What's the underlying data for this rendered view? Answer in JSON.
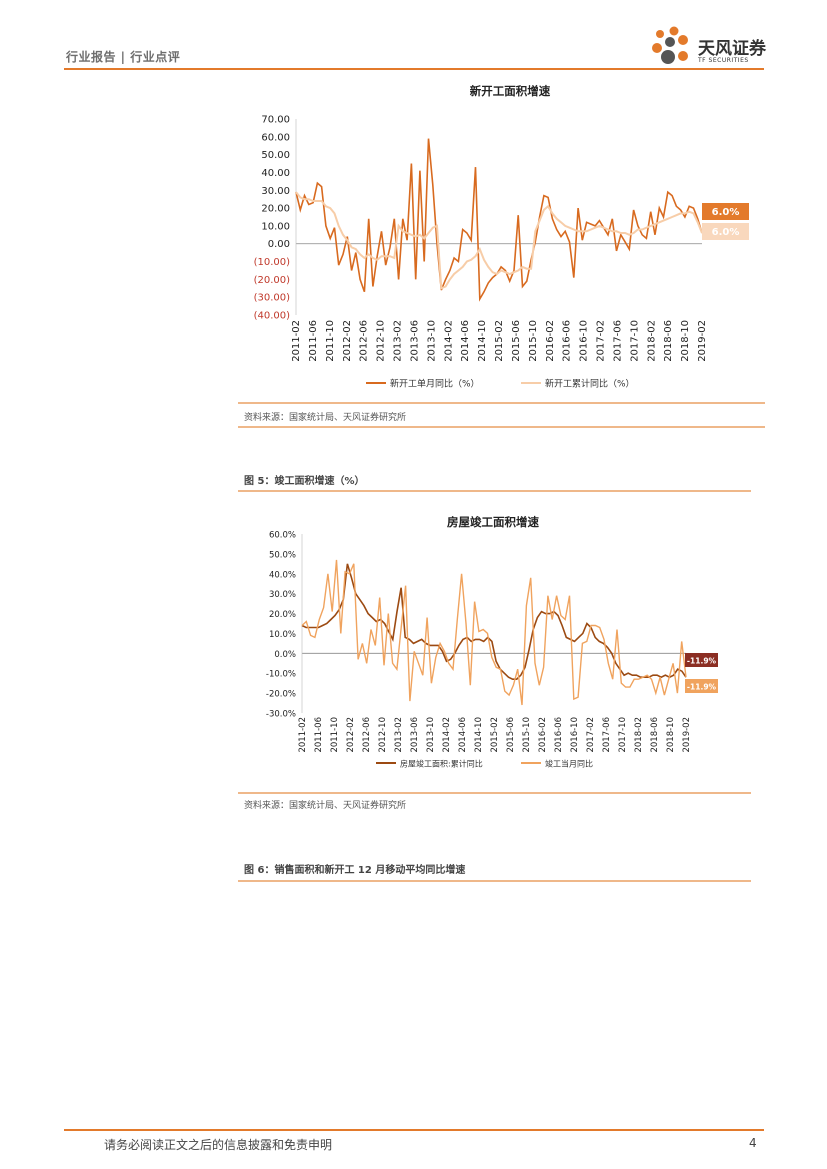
{
  "header": {
    "label": "行业报告 | 行业点评",
    "logo_cn": "天风证券",
    "logo_en": "TF SECURITIES"
  },
  "colors": {
    "accent": "#e37a2b",
    "series_dark_orange": "#d86a1f",
    "series_light_peach": "#f7cda8",
    "series_brown": "#9c4a12",
    "series_orange2": "#f0a35e",
    "label_box_brown": "#8b2e23"
  },
  "chart_data": [
    {
      "type": "line",
      "title": "新开工面积增速",
      "ylim": [
        -40,
        70
      ],
      "yticks": [
        "70.00",
        "60.00",
        "50.00",
        "40.00",
        "30.00",
        "20.00",
        "10.00",
        "0.00",
        "(10.00)",
        "(20.00)",
        "(30.00)",
        "(40.00)"
      ],
      "xticks": [
        "2011-02",
        "2011-06",
        "2011-10",
        "2012-02",
        "2012-06",
        "2012-10",
        "2013-02",
        "2013-06",
        "2013-10",
        "2014-02",
        "2014-06",
        "2014-10",
        "2015-02",
        "2015-06",
        "2015-10",
        "2016-02",
        "2016-06",
        "2016-10",
        "2017-02",
        "2017-06",
        "2017-10",
        "2018-02",
        "2018-06",
        "2018-10",
        "2019-02"
      ],
      "series": [
        {
          "name": "新开工单月同比（%）",
          "end_label": "6.0%",
          "values": [
            29,
            19,
            27,
            22,
            23,
            34,
            32,
            10,
            3,
            9,
            -12,
            -6,
            4,
            -15,
            -5,
            -20,
            -27,
            14,
            -24,
            -7,
            7,
            -12,
            -2,
            14,
            -20,
            14,
            2,
            45,
            -20,
            41,
            -10,
            59,
            33,
            0,
            -26,
            -20,
            -15,
            -8,
            -10,
            8,
            6,
            2,
            43,
            -31,
            -27,
            -22,
            -19,
            -17,
            -13,
            -15,
            -21,
            -15,
            16,
            -24,
            -21,
            -9,
            1,
            15,
            27,
            26,
            14,
            8,
            4,
            7,
            1,
            -19,
            20,
            2,
            12,
            11,
            10,
            13,
            9,
            5,
            14,
            -4,
            5,
            1,
            -3,
            19,
            10,
            5,
            3,
            18,
            5,
            20,
            15,
            29,
            27,
            21,
            19,
            15,
            21,
            20,
            14,
            6
          ],
          "color": "#d86a1f"
        },
        {
          "name": "新开工累计同比（%）",
          "end_label": "6.0%",
          "values": [
            29,
            26,
            25,
            25,
            24,
            24,
            24,
            21,
            20,
            17,
            10,
            5,
            2,
            -2,
            -3,
            -6,
            -8,
            -6,
            -8,
            -9,
            -7,
            -7,
            -7,
            -8,
            10,
            7,
            6,
            5,
            4,
            5,
            3,
            6,
            9,
            10,
            -25,
            -24,
            -20,
            -17,
            -15,
            -13,
            -10,
            -9,
            -7,
            -3,
            -9,
            -13,
            -16,
            -17,
            -15,
            -16,
            -17,
            -16,
            -15,
            -13,
            -14,
            -14,
            7,
            13,
            19,
            21,
            17,
            14,
            12,
            10,
            9,
            8,
            7,
            7,
            7,
            8,
            9,
            10,
            9,
            8,
            7,
            7,
            6,
            6,
            5,
            6,
            8,
            8,
            9,
            10,
            11,
            12,
            13,
            14,
            15,
            16,
            17,
            17,
            18,
            17,
            12,
            6
          ],
          "color": "#f7cda8"
        }
      ],
      "source": "资料来源：国家统计局、天风证券研究所"
    },
    {
      "type": "line",
      "figure_label": "图 5：竣工面积增速（%）",
      "title": "房屋竣工面积增速",
      "ylim": [
        -30,
        60
      ],
      "yticks": [
        "60.0%",
        "50.0%",
        "40.0%",
        "30.0%",
        "20.0%",
        "10.0%",
        "0.0%",
        "-10.0%",
        "-20.0%",
        "-30.0%"
      ],
      "xticks": [
        "2011-02",
        "2011-06",
        "2011-10",
        "2012-02",
        "2012-06",
        "2012-10",
        "2013-02",
        "2013-06",
        "2013-10",
        "2014-02",
        "2014-06",
        "2014-10",
        "2015-02",
        "2015-06",
        "2015-10",
        "2016-02",
        "2016-06",
        "2016-10",
        "2017-02",
        "2017-06",
        "2017-10",
        "2018-02",
        "2018-06",
        "2018-10",
        "2019-02"
      ],
      "series": [
        {
          "name": "房屋竣工面积:累计同比",
          "end_label": "-11.9%",
          "values": [
            14,
            13,
            13,
            13,
            13,
            14,
            15,
            17,
            19,
            22,
            27,
            45,
            38,
            30,
            27,
            24,
            20,
            18,
            16,
            17,
            15,
            11,
            7,
            21,
            33,
            8,
            7,
            5,
            6,
            7,
            5,
            4,
            4,
            4,
            1,
            -4,
            -3,
            0,
            4,
            7,
            8,
            6,
            7,
            7,
            6,
            8,
            6,
            -4,
            -8,
            -10,
            -12,
            -13,
            -13,
            -11,
            -7,
            2,
            12,
            18,
            21,
            20,
            20,
            21,
            19,
            14,
            8,
            7,
            6,
            8,
            10,
            15,
            13,
            8,
            6,
            5,
            3,
            0,
            -5,
            -8,
            -11,
            -10,
            -11,
            -11,
            -12,
            -12,
            -12,
            -11,
            -11,
            -12,
            -11,
            -12,
            -11,
            -8,
            -9,
            -12
          ],
          "color": "#9c4a12"
        },
        {
          "name": "竣工当月同比",
          "end_label": "-11.9%",
          "values": [
            14,
            16,
            9,
            8,
            17,
            23,
            40,
            21,
            47,
            10,
            41,
            40,
            45,
            -3,
            5,
            -5,
            12,
            4,
            28,
            -6,
            20,
            -5,
            -8,
            13,
            34,
            -24,
            1,
            -5,
            -11,
            18,
            -15,
            -2,
            5,
            1,
            -5,
            -8,
            17,
            40,
            15,
            -16,
            26,
            11,
            12,
            10,
            -2,
            -7,
            -8,
            -19,
            -21,
            -16,
            -8,
            -26,
            24,
            38,
            -5,
            -16,
            -7,
            29,
            17,
            29,
            19,
            17,
            29,
            -23,
            -22,
            5,
            6,
            14,
            14,
            13,
            7,
            -5,
            -13,
            12,
            -15,
            -17,
            -17,
            -13,
            -13,
            -12,
            -11,
            -13,
            -20,
            -12,
            -21,
            -13,
            -5,
            -20,
            6,
            -12
          ],
          "color": "#f0a35e"
        }
      ],
      "source": "资料来源：国家统计局、天风证券研究所"
    }
  ],
  "figure6_label": "图 6：销售面积和新开工 12 月移动平均同比增速",
  "footer": {
    "disclaimer": "请务必阅读正文之后的信息披露和免责申明",
    "page_number": "4"
  }
}
